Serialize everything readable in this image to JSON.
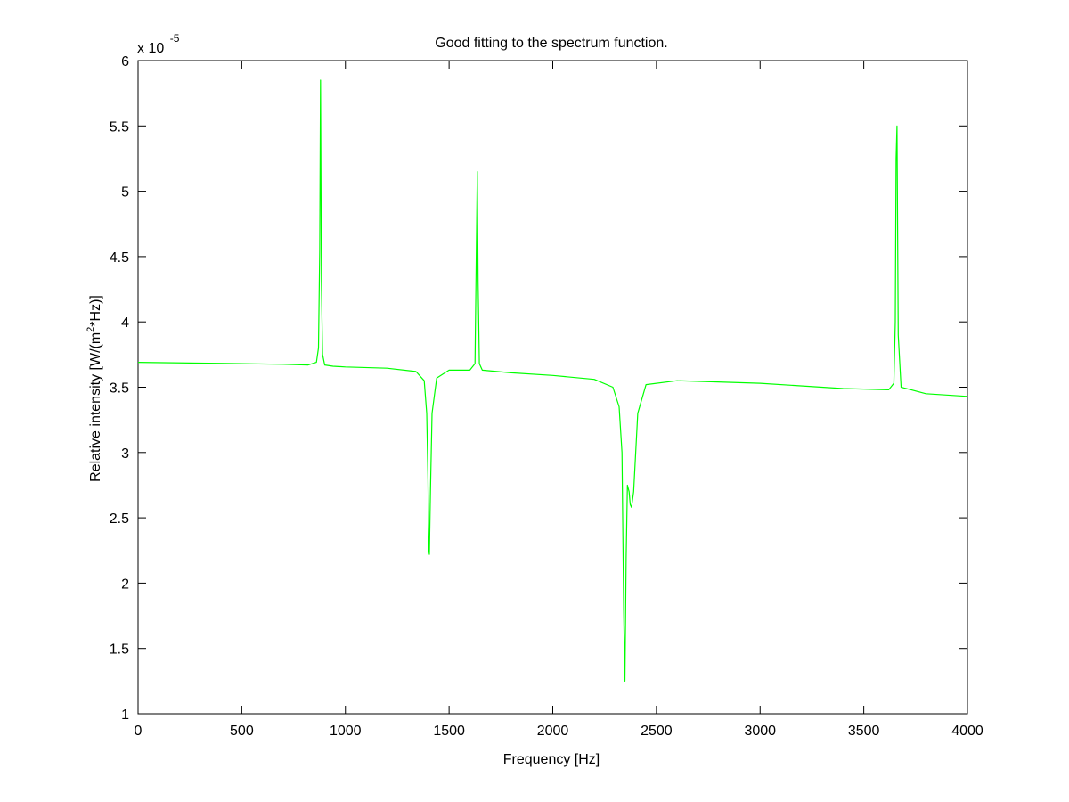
{
  "chart_data": {
    "type": "line",
    "title": "Good fitting to the spectrum function.",
    "xlabel": "Frequency [Hz]",
    "ylabel_parts": {
      "before": "Relative intensity [W/(m",
      "sup": "2",
      "after": "*Hz)]"
    },
    "exponent_label": {
      "base": "x 10",
      "sup": "-5"
    },
    "xlim": [
      0,
      4000
    ],
    "ylim": [
      1,
      6
    ],
    "xticks": [
      0,
      500,
      1000,
      1500,
      2000,
      2500,
      3000,
      3500,
      4000
    ],
    "xtick_labels": [
      "0",
      "500",
      "1000",
      "1500",
      "2000",
      "2500",
      "3000",
      "3500",
      "4000"
    ],
    "yticks": [
      1,
      1.5,
      2,
      2.5,
      3,
      3.5,
      4,
      4.5,
      5,
      5.5,
      6
    ],
    "ytick_labels": [
      "1",
      "1.5",
      "2",
      "2.5",
      "3",
      "3.5",
      "4",
      "4.5",
      "5",
      "5.5",
      "6"
    ],
    "grid": false,
    "series": [
      {
        "color": "#00ff00",
        "x": [
          0,
          250,
          500,
          700,
          820,
          860,
          870,
          876,
          880,
          884,
          890,
          900,
          940,
          1000,
          1200,
          1340,
          1380,
          1392,
          1398,
          1402,
          1405,
          1410,
          1418,
          1440,
          1500,
          1600,
          1625,
          1632,
          1636,
          1640,
          1646,
          1660,
          1800,
          2000,
          2200,
          2290,
          2320,
          2334,
          2342,
          2348,
          2354,
          2360,
          2368,
          2374,
          2380,
          2390,
          2410,
          2450,
          2600,
          3000,
          3400,
          3620,
          3645,
          3652,
          3656,
          3660,
          3666,
          3680,
          3800,
          4000
        ],
        "y": [
          3.69,
          3.685,
          3.68,
          3.675,
          3.67,
          3.69,
          3.8,
          4.55,
          5.85,
          4.3,
          3.75,
          3.67,
          3.66,
          3.655,
          3.645,
          3.62,
          3.55,
          3.3,
          2.8,
          2.25,
          2.22,
          2.7,
          3.3,
          3.57,
          3.63,
          3.63,
          3.68,
          4.6,
          5.15,
          4.3,
          3.68,
          3.63,
          3.61,
          3.59,
          3.56,
          3.5,
          3.35,
          3.0,
          1.8,
          1.25,
          2.2,
          2.75,
          2.7,
          2.6,
          2.58,
          2.7,
          3.3,
          3.52,
          3.55,
          3.53,
          3.49,
          3.48,
          3.53,
          4.0,
          5.25,
          5.5,
          3.9,
          3.5,
          3.45,
          3.43
        ]
      }
    ]
  }
}
